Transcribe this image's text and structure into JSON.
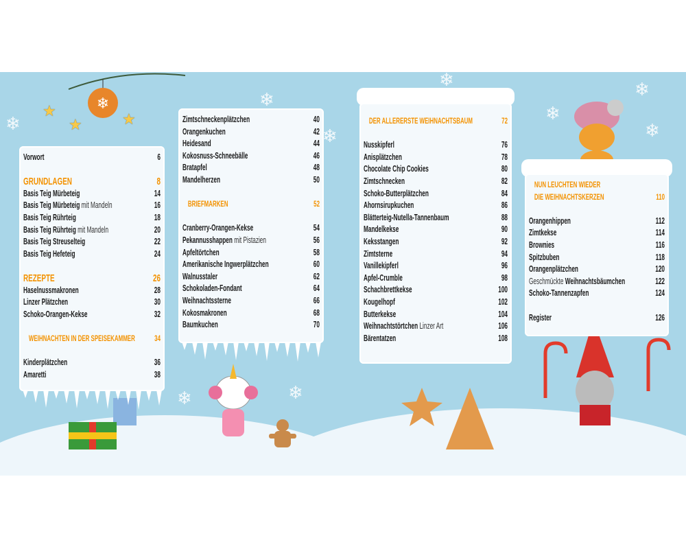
{
  "colors": {
    "background": "#a9d6e8",
    "accent": "#f39200",
    "panel": "#f4f9fc",
    "text": "#1a1a1a"
  },
  "columns": [
    {
      "items": [
        {
          "type": "item",
          "title": "Vorwort",
          "page": "6"
        },
        {
          "type": "heading",
          "title": "GRUNDLAGEN",
          "page": "8"
        },
        {
          "type": "item",
          "title": "Basis Teig Mürbeteig",
          "page": "14"
        },
        {
          "type": "item",
          "title": "Basis Teig Mürbeteig",
          "suffix": " mit Mandeln",
          "page": "16"
        },
        {
          "type": "item",
          "title": "Basis Teig Rührteig",
          "page": "18"
        },
        {
          "type": "item",
          "title": "Basis Teig Rührteig",
          "suffix": " mit Mandeln",
          "page": "20"
        },
        {
          "type": "item",
          "title": "Basis Teig Streuselteig",
          "page": "22"
        },
        {
          "type": "item",
          "title": "Basis Teig Hefeteig",
          "page": "24"
        },
        {
          "type": "heading",
          "title": "REZEPTE",
          "page": "26"
        },
        {
          "type": "item",
          "title": "Haselnussmakronen",
          "page": "28"
        },
        {
          "type": "item",
          "title": "Linzer Plätzchen",
          "page": "30"
        },
        {
          "type": "item",
          "title": "Schoko-Orangen-Kekse",
          "page": "32"
        },
        {
          "type": "sub",
          "title": "WEIHNACHTEN IN DER SPEISEKAMMER",
          "page": "34"
        },
        {
          "type": "item",
          "title": "Kinderplätzchen",
          "page": "36"
        },
        {
          "type": "item",
          "title": "Amaretti",
          "page": "38"
        }
      ]
    },
    {
      "items": [
        {
          "type": "item",
          "title": "Zimtschneckenplätzchen",
          "page": "40"
        },
        {
          "type": "item",
          "title": "Orangenkuchen",
          "page": "42"
        },
        {
          "type": "item",
          "title": "Heidesand",
          "page": "44"
        },
        {
          "type": "item",
          "title": "Kokosnuss-Schneebälle",
          "page": "46"
        },
        {
          "type": "item",
          "title": "Bratapfel",
          "page": "48"
        },
        {
          "type": "item",
          "title": "Mandelherzen",
          "page": "50"
        },
        {
          "type": "sub",
          "title": "BRIEFMARKEN",
          "page": "52"
        },
        {
          "type": "item",
          "title": "Cranberry-Orangen-Kekse",
          "page": "54"
        },
        {
          "type": "item",
          "title": "Pekannusshappen",
          "suffix": " mit Pistazien",
          "page": "56"
        },
        {
          "type": "item",
          "title": "Apfeltörtchen",
          "page": "58"
        },
        {
          "type": "item",
          "title": "Amerikanische Ingwerplätzchen",
          "page": "60"
        },
        {
          "type": "item",
          "title": "Walnusstaler",
          "page": "62"
        },
        {
          "type": "item",
          "title": "Schokoladen-Fondant",
          "page": "64"
        },
        {
          "type": "item",
          "title": "Weihnachtssterne",
          "page": "66"
        },
        {
          "type": "item",
          "title": "Kokosmakronen",
          "page": "68"
        },
        {
          "type": "item",
          "title": "Baumkuchen",
          "page": "70"
        }
      ]
    },
    {
      "items": [
        {
          "type": "sub first",
          "title": "DER ALLERERSTE WEIHNACHTSBAUM",
          "page": "72"
        },
        {
          "type": "item",
          "title": "Nusskipferl",
          "page": "76"
        },
        {
          "type": "item",
          "title": "Anisplätzchen",
          "page": "78"
        },
        {
          "type": "item",
          "title": "Chocolate Chip Cookies",
          "page": "80"
        },
        {
          "type": "item",
          "title": "Zimtschnecken",
          "page": "82"
        },
        {
          "type": "item",
          "title": "Schoko-Butterplätzchen",
          "page": "84"
        },
        {
          "type": "item",
          "title": "Ahornsirupkuchen",
          "page": "86"
        },
        {
          "type": "item",
          "title": "Blätterteig-Nutella-Tannenbaum",
          "page": "88"
        },
        {
          "type": "item",
          "title": "Mandelkekse",
          "page": "90"
        },
        {
          "type": "item",
          "title": "Keksstangen",
          "page": "92"
        },
        {
          "type": "item",
          "title": "Zimtsterne",
          "page": "94"
        },
        {
          "type": "item",
          "title": "Vanillekipferl",
          "page": "96"
        },
        {
          "type": "item",
          "title": "Apfel-Crumble",
          "page": "98"
        },
        {
          "type": "item",
          "title": "Schachbrettkekse",
          "page": "100"
        },
        {
          "type": "item",
          "title": "Kougelhopf",
          "page": "102"
        },
        {
          "type": "item",
          "title": "Butterkekse",
          "page": "104"
        },
        {
          "type": "item",
          "title": "Weihnachtstörtchen",
          "suffix": " Linzer Art",
          "page": "106"
        },
        {
          "type": "item",
          "title": "Bärentatzen",
          "page": "108"
        }
      ]
    },
    {
      "heading_line1": "NUN LEUCHTEN WIEDER",
      "heading_line2": "DIE WEIHNACHTSKERZEN",
      "heading_page": "110",
      "items": [
        {
          "type": "item",
          "title": "Orangenhippen",
          "page": "112"
        },
        {
          "type": "item",
          "title": "Zimtkekse",
          "page": "114"
        },
        {
          "type": "item",
          "title": "Brownies",
          "page": "116"
        },
        {
          "type": "item",
          "title": "Spitzbuben",
          "page": "118"
        },
        {
          "type": "item",
          "title": "Orangenplätzchen",
          "page": "120"
        },
        {
          "type": "item",
          "prefix": "Geschmückte ",
          "title": "Weihnachtsbäumchen",
          "page": "122"
        },
        {
          "type": "item",
          "title": "Schoko-Tannenzapfen",
          "page": "124"
        },
        {
          "type": "item footer",
          "title": "Register",
          "page": "126"
        }
      ]
    }
  ],
  "icons": [
    "snowflake-icon",
    "star-icon",
    "ornament-icon",
    "gift-icon",
    "unicorn-illustration",
    "gingerbread-man-illustration",
    "gnome-illustration",
    "tiger-illustration",
    "candy-cane-icon",
    "cookie-star-icon",
    "cookie-tree-icon"
  ]
}
